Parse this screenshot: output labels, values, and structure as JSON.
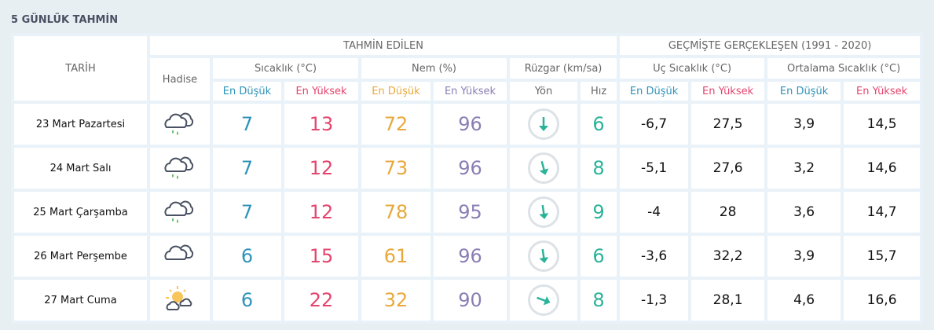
{
  "title": "5 GÜNLÜK TAHMİN",
  "headers": {
    "date": "TARİH",
    "forecast": "TAHMİN EDİLEN",
    "past": "GEÇMİŞTE GERÇEKLEŞEN (1991 - 2020)",
    "event": "Hadise",
    "temp": "Sıcaklık (°C)",
    "humidity": "Nem (%)",
    "wind": "Rüzgar (km/sa)",
    "extreme": "Uç Sıcaklık (°C)",
    "average": "Ortalama Sıcaklık (°C)",
    "low": "En Düşük",
    "high": "En Yüksek",
    "direction": "Yön",
    "speed": "Hız"
  },
  "colors": {
    "low": "#2e93b8",
    "high": "#e5446d",
    "humidity_low": "#e8a93a",
    "humidity_high": "#8a7fb5",
    "wind": "#2bb39a"
  },
  "rows": [
    {
      "date": "23 Mart Pazartesi",
      "icon": "cloud-rain-icon",
      "tmin": "7",
      "tmax": "13",
      "hmin": "72",
      "hmax": "96",
      "wind_dir_deg": 180,
      "wind_speed": "6",
      "xmin": "-6,7",
      "xmax": "27,5",
      "amin": "3,9",
      "amax": "14,5"
    },
    {
      "date": "24 Mart Salı",
      "icon": "cloud-rain-icon",
      "tmin": "7",
      "tmax": "12",
      "hmin": "73",
      "hmax": "96",
      "wind_dir_deg": 165,
      "wind_speed": "8",
      "xmin": "-5,1",
      "xmax": "27,6",
      "amin": "3,2",
      "amax": "14,6"
    },
    {
      "date": "25 Mart Çarşamba",
      "icon": "cloud-rain-icon",
      "tmin": "7",
      "tmax": "12",
      "hmin": "78",
      "hmax": "95",
      "wind_dir_deg": 172,
      "wind_speed": "9",
      "xmin": "-4",
      "xmax": "28",
      "amin": "3,6",
      "amax": "14,7"
    },
    {
      "date": "26 Mart Perşembe",
      "icon": "cloud-icon",
      "tmin": "6",
      "tmax": "15",
      "hmin": "61",
      "hmax": "96",
      "wind_dir_deg": 172,
      "wind_speed": "6",
      "xmin": "-3,6",
      "xmax": "32,2",
      "amin": "3,9",
      "amax": "15,7"
    },
    {
      "date": "27 Mart Cuma",
      "icon": "partly-sunny-icon",
      "tmin": "6",
      "tmax": "22",
      "hmin": "32",
      "hmax": "90",
      "wind_dir_deg": 110,
      "wind_speed": "8",
      "xmin": "-1,3",
      "xmax": "28,1",
      "amin": "4,6",
      "amax": "16,6"
    }
  ]
}
